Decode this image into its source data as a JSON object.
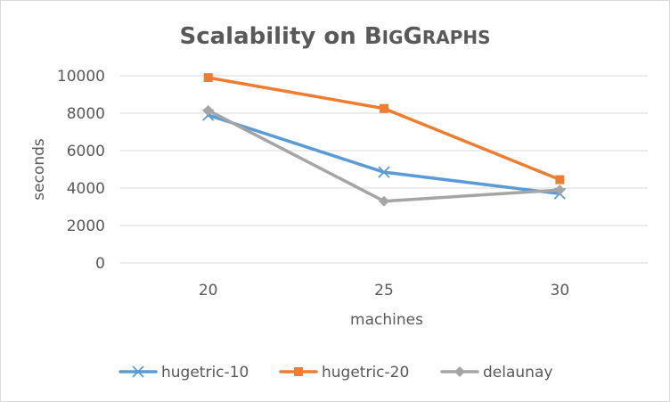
{
  "chart_data": {
    "type": "line",
    "title": "Scalability on BigGraphs",
    "title_parts": {
      "lead": "Scalability on ",
      "smallcaps_a": "B",
      "smallcaps_a_rest": "IG",
      "smallcaps_b": "G",
      "smallcaps_b_rest": "RAPHS"
    },
    "xlabel": "machines",
    "ylabel": "seconds",
    "categories": [
      "20",
      "25",
      "30"
    ],
    "ylim": [
      0,
      10000
    ],
    "yticks": [
      0,
      2000,
      4000,
      6000,
      8000,
      10000
    ],
    "grid": true,
    "legend_position": "bottom",
    "series": [
      {
        "name": "hugetric-10",
        "color": "#5B9BD5",
        "marker": "x",
        "values": [
          7900,
          4850,
          3700
        ]
      },
      {
        "name": "hugetric-20",
        "color": "#ED7D31",
        "marker": "square",
        "values": [
          9900,
          8250,
          4450
        ]
      },
      {
        "name": "delaunay",
        "color": "#A5A5A5",
        "marker": "diamond",
        "values": [
          8150,
          3300,
          3900
        ]
      }
    ]
  }
}
